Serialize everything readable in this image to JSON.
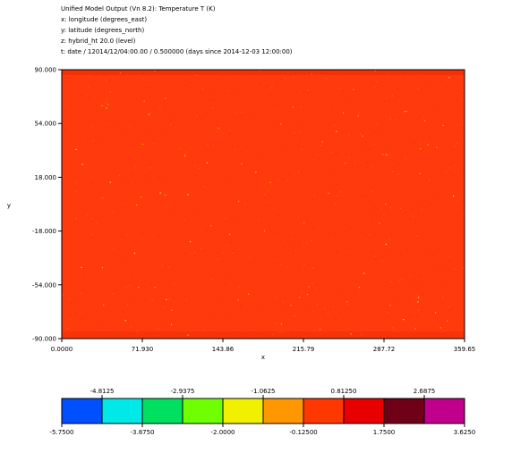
{
  "header": {
    "lines": [
      "Unified Model Output (Vn 8.2): Temperature T (K)",
      "x: longitude  (degrees_east)",
      "y: latitude  (degrees_north)",
      "z: hybrid_ht 20.0 (level)",
      "t: date / 12014/12/04:00.00 / 0.500000 (days since 2014-12-03 12:00:00)"
    ]
  },
  "chart_data": {
    "type": "heatmap",
    "title": "Unified Model Output (Vn 8.2): Temperature T (K)",
    "xlabel": "x",
    "ylabel": "y",
    "xlim": [
      0,
      359.65
    ],
    "ylim": [
      -90,
      90
    ],
    "x_ticks": [
      "0.0000",
      "71.930",
      "143.86",
      "215.79",
      "287.72",
      "359.65"
    ],
    "x_tick_values": [
      0,
      71.93,
      143.86,
      215.79,
      287.72,
      359.65
    ],
    "y_ticks": [
      "90.000",
      "54.000",
      "18.000",
      "-18.000",
      "-54.000",
      "-90.000"
    ],
    "y_tick_values": [
      90,
      54,
      18,
      -18,
      -54,
      -90
    ],
    "background_value": 0.5,
    "colorbar": {
      "bounds": [
        -5.75,
        -4.8125,
        -3.875,
        -2.9375,
        -2.0,
        -1.0625,
        -0.125,
        0.8125,
        1.75,
        2.6875,
        3.625
      ],
      "labels_bottom": [
        "-5.7500",
        "-3.8750",
        "-2.0000",
        "-0.12500",
        "1.7500",
        "3.6250"
      ],
      "labels_top": [
        "-4.8125",
        "-2.9375",
        "-1.0625",
        "0.81250",
        "2.6875"
      ],
      "colors": [
        "#0050ff",
        "#00e8e8",
        "#00e060",
        "#70ff00",
        "#f0f000",
        "#ff9800",
        "#ff3800",
        "#e80000",
        "#700018",
        "#c0008c"
      ]
    },
    "field_colors": {
      "base": "#ff3a0c",
      "variations": [
        "#ff5a14",
        "#f62808",
        "#ff7020",
        "#ffc000",
        "#ffe850",
        "#e02000"
      ]
    }
  }
}
